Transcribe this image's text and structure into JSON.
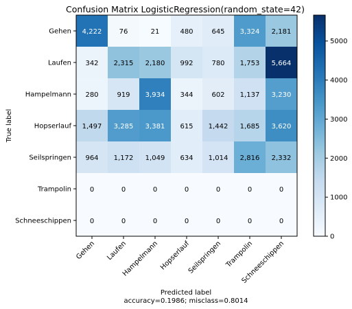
{
  "chart_data": {
    "type": "heatmap",
    "title": "Confusion Matrix LogisticRegression(random_state=42)",
    "ylabel": "True label",
    "xlabel_lines": [
      "Predicted label",
      "accuracy=0.1986; misclass=0.8014"
    ],
    "row_labels": [
      "Gehen",
      "Laufen",
      "Hampelmann",
      "Hopserlauf",
      "Seilspringen",
      "Trampolin",
      "Schneeschippen"
    ],
    "col_labels": [
      "Gehen",
      "Laufen",
      "Hampelmann",
      "Hopserlauf",
      "Seilspringen",
      "Trampolin",
      "Schneeschippen"
    ],
    "values": [
      [
        4222,
        76,
        21,
        480,
        645,
        3324,
        2181
      ],
      [
        342,
        2315,
        2180,
        992,
        780,
        1753,
        5664
      ],
      [
        280,
        919,
        3934,
        344,
        602,
        1137,
        3230
      ],
      [
        1497,
        3285,
        3381,
        615,
        1442,
        1685,
        3620
      ],
      [
        964,
        1172,
        1049,
        634,
        1014,
        2816,
        2332
      ],
      [
        0,
        0,
        0,
        0,
        0,
        0,
        0
      ],
      [
        0,
        0,
        0,
        0,
        0,
        0,
        0
      ]
    ],
    "colormap": "Blues",
    "vmin": 0,
    "vmax": 5664,
    "colorbar_ticks": [
      0,
      1000,
      2000,
      3000,
      4000,
      5000
    ]
  }
}
